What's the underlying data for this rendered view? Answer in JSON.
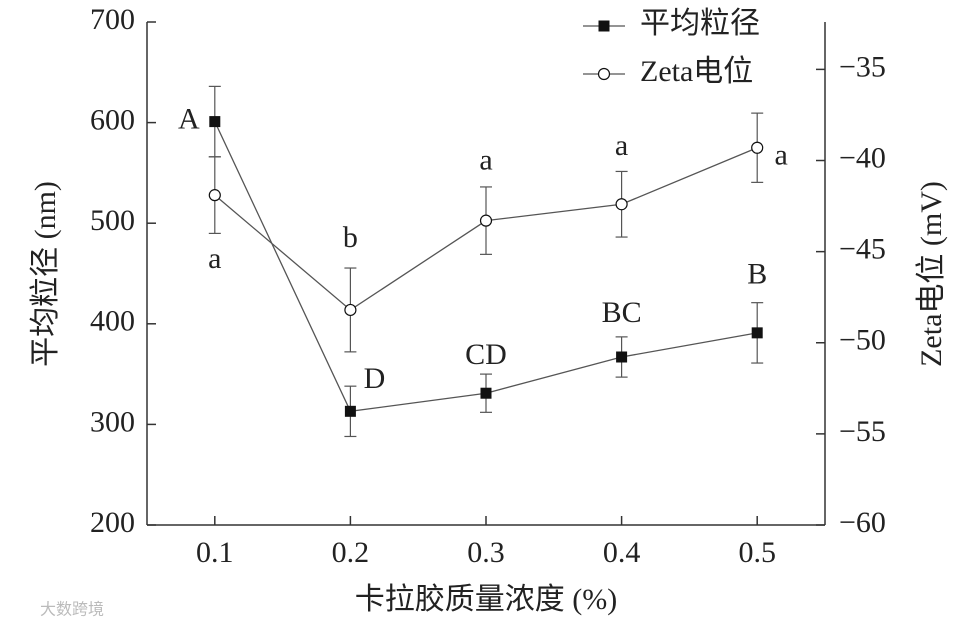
{
  "chart_data": {
    "type": "line",
    "x_label": "卡拉胶质量浓度 (%)",
    "y_label": "平均粒径 (nm)",
    "y2_label": "Zeta电位 (mV)",
    "x": [
      0.1,
      0.2,
      0.3,
      0.4,
      0.5
    ],
    "xlim": [
      0.05,
      0.55
    ],
    "xticks": [
      0.1,
      0.2,
      0.3,
      0.4,
      0.5
    ],
    "ylim": [
      200,
      700
    ],
    "yticks": [
      200,
      300,
      400,
      500,
      600,
      700
    ],
    "y2lim": [
      -60,
      -32.4
    ],
    "y2ticks": [
      {
        "value": -60,
        "label": "−60"
      },
      {
        "value": -55,
        "label": "−55"
      },
      {
        "value": -50,
        "label": "−50"
      },
      {
        "value": -45,
        "label": "−45"
      },
      {
        "value": -40,
        "label": "−40"
      },
      {
        "value": -35,
        "label": "−35"
      }
    ],
    "series": [
      {
        "name": "平均粒径",
        "color": "#111111",
        "marker": "square",
        "values": [
          601,
          313,
          331,
          367,
          391
        ],
        "errors": [
          35,
          25,
          19,
          20,
          30
        ],
        "letters": [
          "A",
          "D",
          "CD",
          "BC",
          "B"
        ]
      },
      {
        "name": "Zeta电位",
        "color": "#111111",
        "marker": "circle",
        "axis": "y2",
        "values": [
          -41.9,
          -48.2,
          -43.3,
          -42.4,
          -39.3
        ],
        "errors": [
          2.1,
          2.3,
          1.85,
          1.8,
          1.9
        ],
        "letters": [
          "a",
          "b",
          "a",
          "a",
          "a"
        ]
      }
    ],
    "legend": "top-right",
    "watermark": "大数跨境"
  }
}
